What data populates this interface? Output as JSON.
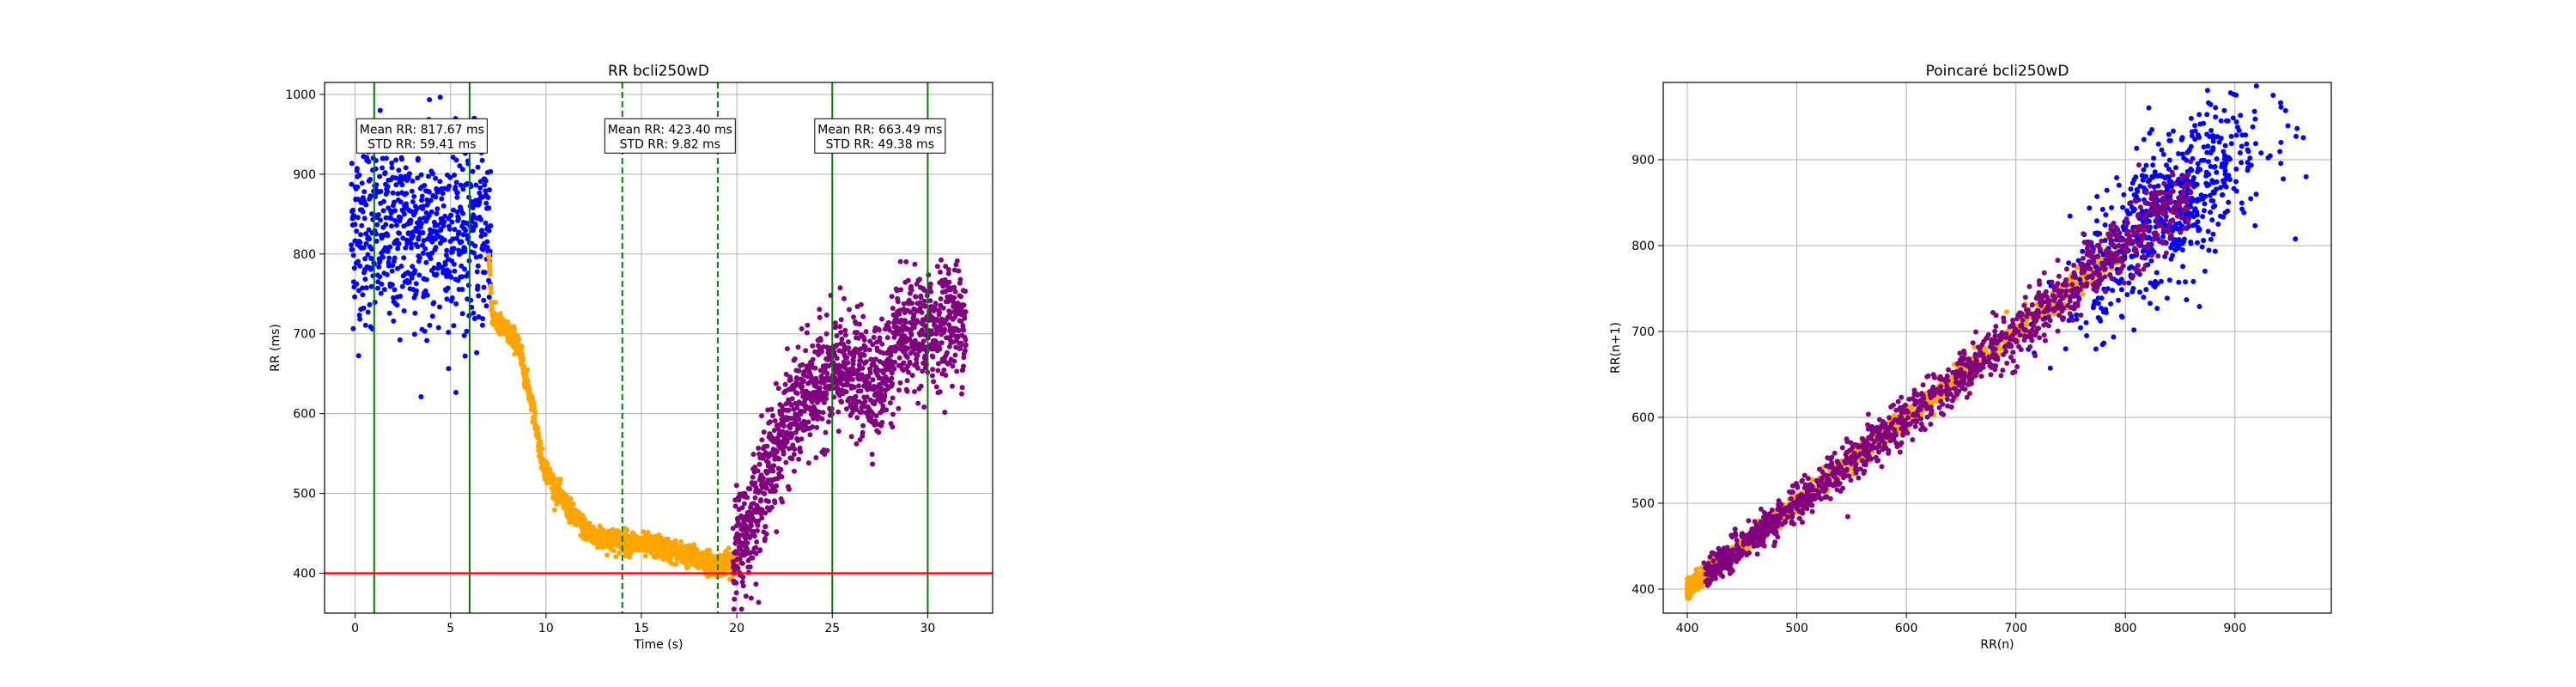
{
  "charts": [
    {
      "type": "scatter",
      "title": "RR bcli250wD",
      "xlabel": "Time (s)",
      "ylabel": "RR (ms)",
      "xlim": [
        -1.6,
        33.4
      ],
      "ylim": [
        350,
        1015
      ],
      "xticks": [
        0,
        5,
        10,
        15,
        20,
        25,
        30
      ],
      "yticks": [
        400,
        500,
        600,
        700,
        800,
        900,
        1000
      ],
      "grid": true,
      "colors": {
        "phase1": "#0000ff",
        "transition": "#ffa500",
        "phase3": "#800080",
        "solid_line": "#008000",
        "dashed_line": "#008000",
        "threshold": "#ff0000"
      },
      "vlines": [
        {
          "x": 1,
          "style": "solid"
        },
        {
          "x": 6,
          "style": "solid"
        },
        {
          "x": 14,
          "style": "dashed"
        },
        {
          "x": 19,
          "style": "dashed"
        },
        {
          "x": 25,
          "style": "solid"
        },
        {
          "x": 30,
          "style": "solid"
        }
      ],
      "hline": {
        "y": 400
      },
      "annotations": [
        {
          "line1": "Mean RR: 817.67 ms",
          "line2": "STD RR: 59.41 ms",
          "x": 3.5,
          "y": 948
        },
        {
          "line1": "Mean RR: 423.40 ms",
          "line2": "STD RR: 9.82 ms",
          "x": 16.5,
          "y": 948
        },
        {
          "line1": "Mean RR: 663.49 ms",
          "line2": "STD RR: 49.38 ms",
          "x": 27.5,
          "y": 948
        }
      ],
      "series_profile": [
        {
          "name": "phase1",
          "t0": -0.2,
          "t1": 7.1,
          "profile": [
            [
              -0.2,
              830
            ],
            [
              7.1,
              830
            ]
          ],
          "spread": 60,
          "n": 700
        },
        {
          "name": "transition",
          "t0": 7.0,
          "t1": 20.0,
          "profile": [
            [
              7.0,
              800
            ],
            [
              7.2,
              720
            ],
            [
              8.5,
              690
            ],
            [
              9.3,
              610
            ],
            [
              9.8,
              540
            ],
            [
              10.5,
              505
            ],
            [
              11.5,
              470
            ],
            [
              12.5,
              445
            ],
            [
              14,
              440
            ],
            [
              16,
              432
            ],
            [
              18,
              418
            ],
            [
              19,
              410
            ],
            [
              20,
              415
            ]
          ],
          "spread": 7,
          "n": 1300
        },
        {
          "name": "phase3",
          "t0": 19.8,
          "t1": 32.0,
          "profile": [
            [
              19.8,
              425
            ],
            [
              20.5,
              450
            ],
            [
              21.5,
              520
            ],
            [
              22.5,
              580
            ],
            [
              23.5,
              615
            ],
            [
              24.5,
              640
            ],
            [
              25.5,
              655
            ],
            [
              26.5,
              645
            ],
            [
              27.5,
              640
            ],
            [
              28.5,
              690
            ],
            [
              30,
              700
            ],
            [
              31,
              720
            ],
            [
              32,
              715
            ]
          ],
          "spread": 35,
          "n": 1400
        }
      ]
    },
    {
      "type": "scatter",
      "title": "Poincaré bcli250wD",
      "xlabel": "RR(n)",
      "ylabel": "RR(n+1)",
      "xlim": [
        378,
        988
      ],
      "ylim": [
        372,
        990
      ],
      "xticks": [
        400,
        500,
        600,
        700,
        800,
        900
      ],
      "yticks": [
        400,
        500,
        600,
        700,
        800,
        900
      ],
      "grid": true,
      "series_profile": [
        {
          "name": "transition",
          "color": "#ffa500",
          "x0": 400,
          "x1": 800,
          "spread": 8,
          "n": 1200
        },
        {
          "name": "phase1",
          "color": "#0000ff",
          "x0": 680,
          "x1": 965,
          "spread": 35,
          "n": 650
        },
        {
          "name": "phase3",
          "color": "#800080",
          "x0": 415,
          "x1": 860,
          "spread": 16,
          "n": 1300
        }
      ]
    }
  ]
}
